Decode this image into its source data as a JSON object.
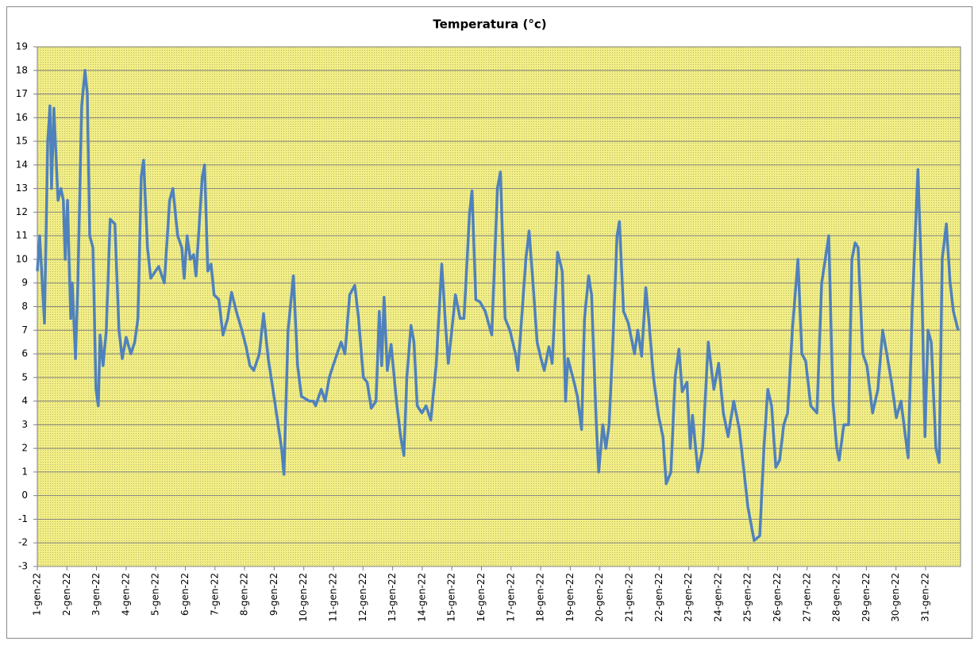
{
  "chart_data": {
    "type": "line",
    "title": "Temperatura (°c)",
    "color": "#4f81bd",
    "grid": true,
    "ylim": [
      -3,
      19
    ],
    "yticks": [
      -3,
      -2,
      -1,
      0,
      1,
      2,
      3,
      4,
      5,
      6,
      7,
      8,
      9,
      10,
      11,
      12,
      13,
      14,
      15,
      16,
      17,
      18,
      19
    ],
    "xlim": [
      1,
      32.18
    ],
    "xticks": [
      {
        "value": 1,
        "label": "1-gen-22"
      },
      {
        "value": 2,
        "label": "2-gen-22"
      },
      {
        "value": 3,
        "label": "3-gen-22"
      },
      {
        "value": 4,
        "label": "4-gen-22"
      },
      {
        "value": 5,
        "label": "5-gen-22"
      },
      {
        "value": 6,
        "label": "6-gen-22"
      },
      {
        "value": 7,
        "label": "7-gen-22"
      },
      {
        "value": 8,
        "label": "8-gen-22"
      },
      {
        "value": 9,
        "label": "9-gen-22"
      },
      {
        "value": 10,
        "label": "10-gen-22"
      },
      {
        "value": 11,
        "label": "11-gen-22"
      },
      {
        "value": 12,
        "label": "12-gen-22"
      },
      {
        "value": 13,
        "label": "13-gen-22"
      },
      {
        "value": 14,
        "label": "14-gen-22"
      },
      {
        "value": 15,
        "label": "15-gen-22"
      },
      {
        "value": 16,
        "label": "16-gen-22"
      },
      {
        "value": 17,
        "label": "17-gen-22"
      },
      {
        "value": 18,
        "label": "18-gen-22"
      },
      {
        "value": 19,
        "label": "19-gen-22"
      },
      {
        "value": 20,
        "label": "20-gen-22"
      },
      {
        "value": 21,
        "label": "21-gen-22"
      },
      {
        "value": 22,
        "label": "22-gen-22"
      },
      {
        "value": 23,
        "label": "23-gen-22"
      },
      {
        "value": 24,
        "label": "24-gen-22"
      },
      {
        "value": 25,
        "label": "25-gen-22"
      },
      {
        "value": 26,
        "label": "26-gen-22"
      },
      {
        "value": 27,
        "label": "27-gen-22"
      },
      {
        "value": 28,
        "label": "28-gen-22"
      },
      {
        "value": 29,
        "label": "29-gen-22"
      },
      {
        "value": 30,
        "label": "30-gen-22"
      },
      {
        "value": 31,
        "label": "31-gen-22"
      }
    ],
    "x": [
      1.0,
      1.08,
      1.24,
      1.35,
      1.43,
      1.48,
      1.56,
      1.7,
      1.8,
      1.88,
      1.94,
      2.02,
      2.13,
      2.18,
      2.29,
      2.37,
      2.5,
      2.61,
      2.69,
      2.77,
      2.88,
      2.98,
      3.06,
      3.12,
      3.22,
      3.33,
      3.46,
      3.62,
      3.76,
      3.87,
      4.0,
      4.16,
      4.29,
      4.4,
      4.51,
      4.59,
      4.72,
      4.83,
      4.99,
      5.1,
      5.29,
      5.47,
      5.58,
      5.74,
      5.88,
      5.96,
      6.06,
      6.17,
      6.28,
      6.36,
      6.57,
      6.65,
      6.76,
      6.87,
      6.97,
      7.13,
      7.27,
      7.43,
      7.56,
      7.72,
      7.91,
      8.05,
      8.18,
      8.31,
      8.5,
      8.64,
      8.8,
      8.98,
      9.25,
      9.33,
      9.47,
      9.65,
      9.79,
      9.92,
      10.19,
      10.32,
      10.4,
      10.59,
      10.72,
      10.86,
      10.99,
      11.26,
      11.39,
      11.55,
      11.72,
      11.85,
      12.01,
      12.14,
      12.28,
      12.44,
      12.55,
      12.63,
      12.71,
      12.82,
      12.95,
      13.13,
      13.27,
      13.38,
      13.48,
      13.62,
      13.72,
      13.83,
      13.99,
      14.13,
      14.29,
      14.47,
      14.66,
      14.8,
      14.88,
      15.04,
      15.12,
      15.28,
      15.41,
      15.6,
      15.68,
      15.81,
      15.95,
      16.13,
      16.35,
      16.54,
      16.64,
      16.8,
      16.96,
      17.15,
      17.23,
      17.34,
      17.5,
      17.61,
      17.74,
      17.88,
      18.01,
      18.12,
      18.28,
      18.39,
      18.57,
      18.73,
      18.84,
      18.92,
      19.13,
      19.24,
      19.38,
      19.48,
      19.62,
      19.72,
      19.88,
      19.96,
      20.1,
      20.2,
      20.31,
      20.42,
      20.58,
      20.66,
      20.8,
      20.96,
      21.17,
      21.28,
      21.41,
      21.55,
      21.65,
      21.81,
      21.98,
      22.13,
      22.24,
      22.4,
      22.54,
      22.67,
      22.78,
      22.94,
      23.05,
      23.13,
      23.31,
      23.47,
      23.66,
      23.85,
      24.01,
      24.17,
      24.33,
      24.52,
      24.71,
      24.87,
      25.0,
      25.21,
      25.4,
      25.54,
      25.67,
      25.8,
      25.94,
      26.07,
      26.21,
      26.34,
      26.5,
      26.69,
      26.82,
      26.95,
      27.12,
      27.33,
      27.49,
      27.73,
      27.87,
      28.0,
      28.08,
      28.24,
      28.4,
      28.51,
      28.62,
      28.72,
      28.88,
      29.02,
      29.21,
      29.39,
      29.55,
      29.69,
      29.85,
      30.01,
      30.17,
      30.41,
      30.55,
      30.74,
      30.87,
      30.98,
      31.08,
      31.19,
      31.35,
      31.46,
      31.56,
      31.7,
      31.83,
      31.94,
      32.1
    ],
    "values": [
      9.5,
      11,
      7.3,
      15,
      16.5,
      13,
      16.4,
      12.5,
      13,
      12.5,
      10,
      12.5,
      7.5,
      9,
      5.8,
      9,
      16.5,
      18,
      17,
      11,
      10.5,
      4.5,
      3.8,
      6.8,
      5.5,
      7,
      11.7,
      11.5,
      7,
      5.8,
      6.7,
      6,
      6.5,
      7.5,
      13.5,
      14.2,
      10.5,
      9.2,
      9.5,
      9.7,
      9,
      12.5,
      13,
      11,
      10.5,
      9.2,
      11,
      10,
      10.2,
      9.3,
      13.5,
      14,
      9.5,
      9.8,
      8.5,
      8.3,
      6.8,
      7.5,
      8.6,
      7.8,
      7,
      6.3,
      5.5,
      5.3,
      6,
      7.7,
      5.8,
      4.3,
      2,
      0.9,
      7,
      9.3,
      5.5,
      4.2,
      4,
      4,
      3.8,
      4.5,
      4,
      5,
      5.5,
      6.5,
      6,
      8.5,
      8.9,
      7.5,
      5,
      4.8,
      3.7,
      4,
      7.8,
      5.5,
      8.4,
      5.3,
      6.4,
      4,
      2.5,
      1.7,
      5,
      7.2,
      6.5,
      3.8,
      3.5,
      3.8,
      3.2,
      5.5,
      9.8,
      7,
      5.6,
      7.5,
      8.5,
      7.5,
      7.5,
      12,
      12.9,
      8.3,
      8.2,
      7.8,
      6.8,
      13,
      13.7,
      7.5,
      7,
      6,
      5.3,
      7.2,
      10,
      11.2,
      9,
      6.5,
      5.8,
      5.3,
      6.3,
      5.6,
      10.3,
      9.5,
      4,
      5.8,
      4.8,
      4.2,
      2.8,
      7.5,
      9.3,
      8.5,
      3,
      1,
      3,
      2,
      3,
      6,
      11,
      11.6,
      7.8,
      7.3,
      6,
      7,
      5.9,
      8.8,
      7.5,
      5,
      3.4,
      2.5,
      0.5,
      1,
      5,
      6.2,
      4.4,
      4.8,
      2,
      3.4,
      1,
      2,
      6.5,
      4.5,
      5.6,
      3.5,
      2.5,
      4,
      2.8,
      1,
      -0.5,
      -1.9,
      -1.7,
      2,
      4.5,
      3.8,
      1.2,
      1.5,
      3,
      3.5,
      7,
      10,
      6,
      5.7,
      3.8,
      3.5,
      9,
      11,
      4,
      2,
      1.5,
      3,
      3,
      10,
      10.7,
      10.5,
      6,
      5.5,
      3.5,
      4.5,
      7,
      6,
      4.8,
      3.3,
      4,
      1.6,
      8,
      13.8,
      9,
      2.5,
      7,
      6.5,
      2,
      1.4,
      10,
      11.5,
      9,
      7.8,
      7
    ]
  }
}
